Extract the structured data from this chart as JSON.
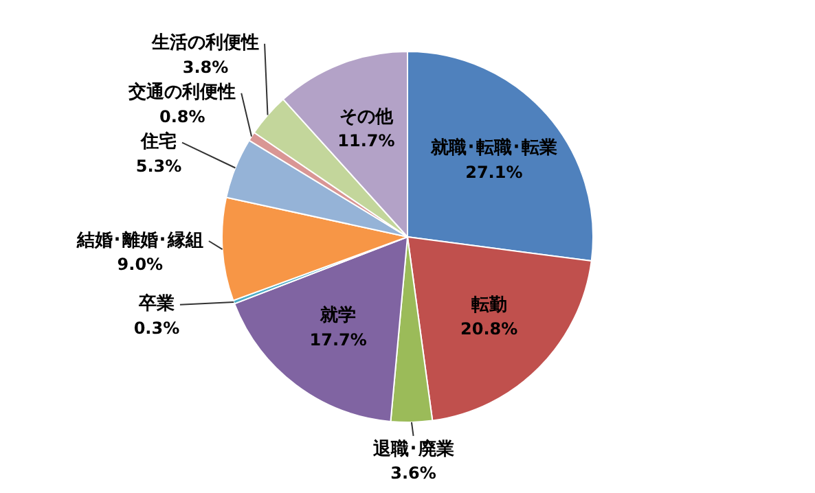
{
  "chart_data": {
    "type": "pie",
    "categories": [
      "就職･転職･転業",
      "転勤",
      "退職･廃業",
      "就学",
      "卒業",
      "結婚･離婚･縁組",
      "住宅",
      "交通の利便性",
      "生活の利便性",
      "その他"
    ],
    "values": [
      27.1,
      20.8,
      3.6,
      17.7,
      0.3,
      9.0,
      5.3,
      0.8,
      3.8,
      11.7
    ],
    "value_labels": [
      "27.1%",
      "20.8%",
      "3.6%",
      "17.7%",
      "0.3%",
      "9.0%",
      "5.3%",
      "0.8%",
      "3.8%",
      "11.7%"
    ],
    "colors": [
      "#4f81bd",
      "#c0504d",
      "#9bbb59",
      "#8064a2",
      "#4bacc6",
      "#f79646",
      "#95b3d7",
      "#d99694",
      "#c3d69b",
      "#b3a2c7"
    ],
    "legend": false
  }
}
